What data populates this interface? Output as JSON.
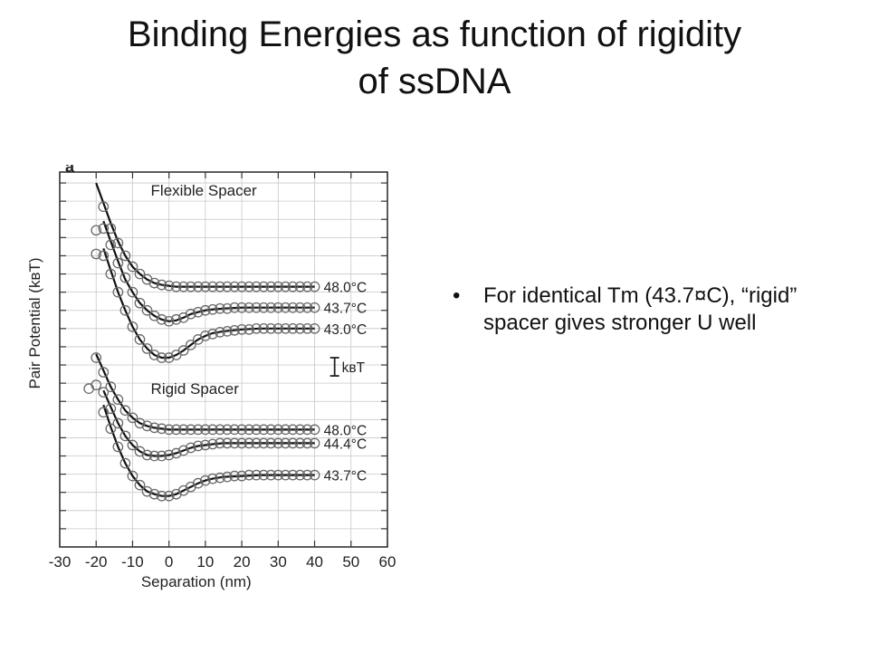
{
  "slide": {
    "title_line1": "Binding Energies as function of rigidity",
    "title_line2": "of ssDNA",
    "bullet_symbol": "•",
    "bullets": [
      "For identical Tm (43.7¤C), “rigid” spacer gives stronger U well"
    ]
  },
  "chart_data": {
    "type": "line",
    "panel_label": "a",
    "xlabel": "Separation (nm)",
    "ylabel": "Pair Potential (kʙT)",
    "xlim": [
      -30,
      60
    ],
    "xticks": [
      -30,
      -20,
      -10,
      0,
      10,
      20,
      30,
      40,
      50,
      60
    ],
    "xtick_labels": [
      "-30",
      "-20",
      "-10",
      "0",
      "10",
      "20",
      "30",
      "40",
      "50",
      "60"
    ],
    "ylim": [
      -19,
      1.6
    ],
    "yticks": [
      1,
      0,
      -1,
      -2,
      -3,
      -4,
      -5,
      -6,
      -7,
      -8,
      -9,
      -10,
      -11,
      -12,
      -13,
      -14,
      -15,
      -16,
      -17,
      -18
    ],
    "grid": true,
    "scale_bar_label": "kʙT",
    "scale_bar_value": 1,
    "groups": [
      {
        "label": "Flexible Spacer",
        "series": [
          {
            "name": "48.0°C",
            "curve_x": [
              -20,
              -18,
              -16,
              -14,
              -12,
              -10,
              -8,
              -6,
              -4,
              -2,
              0,
              2,
              4,
              6,
              8,
              10,
              15,
              20,
              25,
              30,
              35,
              40
            ],
            "curve_y": [
              1.0,
              -0.1,
              -1.2,
              -2.2,
              -3.0,
              -3.6,
              -4.0,
              -4.3,
              -4.5,
              -4.6,
              -4.65,
              -4.7,
              -4.7,
              -4.7,
              -4.7,
              -4.7,
              -4.7,
              -4.7,
              -4.7,
              -4.7,
              -4.7,
              -4.7
            ],
            "point_x": [
              -18,
              -16,
              -14,
              -12,
              -10,
              -8,
              -6,
              -4,
              -2,
              0,
              2,
              4,
              6,
              8,
              10,
              12,
              14,
              16,
              18,
              20,
              22,
              24,
              26,
              28,
              30,
              32,
              34,
              36,
              38,
              40
            ],
            "point_y": [
              -0.3,
              -1.5,
              -2.3,
              -3.0,
              -3.6,
              -4.0,
              -4.3,
              -4.5,
              -4.6,
              -4.65,
              -4.7,
              -4.7,
              -4.7,
              -4.7,
              -4.7,
              -4.7,
              -4.7,
              -4.7,
              -4.7,
              -4.7,
              -4.7,
              -4.7,
              -4.7,
              -4.7,
              -4.7,
              -4.7,
              -4.7,
              -4.7,
              -4.7,
              -4.7
            ]
          },
          {
            "name": "43.7°C",
            "curve_x": [
              -18,
              -16,
              -14,
              -12,
              -10,
              -8,
              -6,
              -4,
              -2,
              0,
              2,
              4,
              6,
              8,
              10,
              12,
              15,
              20,
              25,
              30,
              35,
              40
            ],
            "curve_y": [
              -1.1,
              -2.2,
              -3.3,
              -4.3,
              -5.0,
              -5.6,
              -6.0,
              -6.3,
              -6.5,
              -6.6,
              -6.55,
              -6.4,
              -6.2,
              -6.1,
              -6.0,
              -5.95,
              -5.9,
              -5.85,
              -5.85,
              -5.85,
              -5.85,
              -5.85
            ],
            "point_x": [
              -20,
              -18,
              -16,
              -14,
              -12,
              -10,
              -8,
              -6,
              -4,
              -2,
              0,
              2,
              4,
              6,
              8,
              10,
              12,
              14,
              16,
              18,
              20,
              22,
              24,
              26,
              28,
              30,
              32,
              34,
              36,
              38,
              40
            ],
            "point_y": [
              -1.6,
              -1.5,
              -2.4,
              -3.4,
              -4.2,
              -5.0,
              -5.6,
              -6.0,
              -6.3,
              -6.5,
              -6.6,
              -6.5,
              -6.4,
              -6.2,
              -6.1,
              -6.0,
              -5.95,
              -5.9,
              -5.9,
              -5.85,
              -5.85,
              -5.85,
              -5.85,
              -5.85,
              -5.85,
              -5.85,
              -5.85,
              -5.85,
              -5.85,
              -5.85,
              -5.85
            ]
          },
          {
            "name": "43.0°C",
            "curve_x": [
              -18,
              -16,
              -14,
              -12,
              -10,
              -8,
              -6,
              -4,
              -2,
              0,
              2,
              4,
              6,
              8,
              10,
              12,
              15,
              20,
              25,
              30,
              35,
              40
            ],
            "curve_y": [
              -2.6,
              -3.8,
              -5.0,
              -6.0,
              -6.9,
              -7.6,
              -8.1,
              -8.45,
              -8.6,
              -8.6,
              -8.45,
              -8.2,
              -7.9,
              -7.6,
              -7.4,
              -7.25,
              -7.15,
              -7.05,
              -7.0,
              -7.0,
              -7.0,
              -7.0
            ],
            "point_x": [
              -20,
              -18,
              -16,
              -14,
              -12,
              -10,
              -8,
              -6,
              -4,
              -2,
              0,
              2,
              4,
              6,
              8,
              10,
              12,
              14,
              16,
              18,
              20,
              22,
              24,
              26,
              28,
              30,
              32,
              34,
              36,
              38,
              40
            ],
            "point_y": [
              -2.9,
              -3.0,
              -4.0,
              -5.0,
              -6.0,
              -6.9,
              -7.6,
              -8.1,
              -8.45,
              -8.6,
              -8.6,
              -8.45,
              -8.2,
              -7.9,
              -7.6,
              -7.4,
              -7.3,
              -7.2,
              -7.15,
              -7.1,
              -7.05,
              -7.05,
              -7.0,
              -7.0,
              -7.0,
              -7.0,
              -7.0,
              -7.0,
              -7.0,
              -7.0,
              -7.0
            ]
          }
        ]
      },
      {
        "label": "Rigid Spacer",
        "series": [
          {
            "name": "48.0°C",
            "curve_x": [
              -20,
              -18,
              -16,
              -14,
              -12,
              -10,
              -8,
              -6,
              -4,
              -2,
              0,
              2,
              4,
              6,
              8,
              10,
              15,
              20,
              25,
              30,
              35,
              40
            ],
            "curve_y": [
              -8.4,
              -9.3,
              -10.2,
              -10.9,
              -11.5,
              -11.9,
              -12.2,
              -12.35,
              -12.45,
              -12.5,
              -12.55,
              -12.55,
              -12.55,
              -12.55,
              -12.55,
              -12.55,
              -12.55,
              -12.55,
              -12.55,
              -12.55,
              -12.55,
              -12.55
            ],
            "point_x": [
              -20,
              -18,
              -16,
              -14,
              -12,
              -10,
              -8,
              -6,
              -4,
              -2,
              0,
              2,
              4,
              6,
              8,
              10,
              12,
              14,
              16,
              18,
              20,
              22,
              24,
              26,
              28,
              30,
              32,
              34,
              36,
              38,
              40
            ],
            "point_y": [
              -8.6,
              -9.4,
              -10.2,
              -10.9,
              -11.5,
              -11.9,
              -12.2,
              -12.35,
              -12.45,
              -12.5,
              -12.55,
              -12.55,
              -12.55,
              -12.55,
              -12.55,
              -12.55,
              -12.55,
              -12.55,
              -12.55,
              -12.55,
              -12.55,
              -12.55,
              -12.55,
              -12.55,
              -12.55,
              -12.55,
              -12.55,
              -12.55,
              -12.55,
              -12.55,
              -12.55
            ]
          },
          {
            "name": "44.4°C",
            "curve_x": [
              -18,
              -16,
              -14,
              -12,
              -10,
              -8,
              -6,
              -4,
              -2,
              0,
              2,
              4,
              6,
              8,
              10,
              12,
              15,
              20,
              25,
              30,
              35,
              40
            ],
            "curve_y": [
              -10.4,
              -11.3,
              -12.2,
              -12.9,
              -13.4,
              -13.75,
              -13.95,
              -14.0,
              -14.0,
              -13.95,
              -13.85,
              -13.7,
              -13.55,
              -13.45,
              -13.4,
              -13.35,
              -13.3,
              -13.3,
              -13.3,
              -13.3,
              -13.3,
              -13.3
            ],
            "point_x": [
              -22,
              -20,
              -18,
              -16,
              -14,
              -12,
              -10,
              -8,
              -6,
              -4,
              -2,
              0,
              2,
              4,
              6,
              8,
              10,
              12,
              14,
              16,
              18,
              20,
              22,
              24,
              26,
              28,
              30,
              32,
              34,
              36,
              38,
              40
            ],
            "point_y": [
              -10.3,
              -10.1,
              -10.5,
              -11.4,
              -12.2,
              -12.9,
              -13.4,
              -13.75,
              -13.95,
              -14.0,
              -14.0,
              -13.95,
              -13.85,
              -13.7,
              -13.55,
              -13.45,
              -13.4,
              -13.35,
              -13.3,
              -13.3,
              -13.3,
              -13.3,
              -13.3,
              -13.3,
              -13.3,
              -13.3,
              -13.3,
              -13.3,
              -13.3,
              -13.3,
              -13.3,
              -13.3
            ]
          },
          {
            "name": "43.7°C",
            "curve_x": [
              -18,
              -16,
              -14,
              -12,
              -10,
              -8,
              -6,
              -4,
              -2,
              0,
              2,
              4,
              6,
              8,
              10,
              12,
              15,
              20,
              25,
              30,
              35,
              40
            ],
            "curve_y": [
              -11.2,
              -12.4,
              -13.5,
              -14.4,
              -15.1,
              -15.6,
              -15.95,
              -16.1,
              -16.2,
              -16.2,
              -16.1,
              -15.9,
              -15.7,
              -15.5,
              -15.35,
              -15.25,
              -15.15,
              -15.1,
              -15.05,
              -15.05,
              -15.05,
              -15.05
            ],
            "point_x": [
              -18,
              -16,
              -14,
              -12,
              -10,
              -8,
              -6,
              -4,
              -2,
              0,
              2,
              4,
              6,
              8,
              10,
              12,
              14,
              16,
              18,
              20,
              22,
              24,
              26,
              28,
              30,
              32,
              34,
              36,
              38,
              40
            ],
            "point_y": [
              -11.6,
              -12.5,
              -13.5,
              -14.4,
              -15.1,
              -15.6,
              -15.95,
              -16.1,
              -16.2,
              -16.2,
              -16.1,
              -15.9,
              -15.7,
              -15.5,
              -15.35,
              -15.25,
              -15.2,
              -15.15,
              -15.1,
              -15.1,
              -15.05,
              -15.05,
              -15.05,
              -15.05,
              -15.05,
              -15.05,
              -15.05,
              -15.05,
              -15.05,
              -15.05
            ]
          }
        ]
      }
    ]
  }
}
